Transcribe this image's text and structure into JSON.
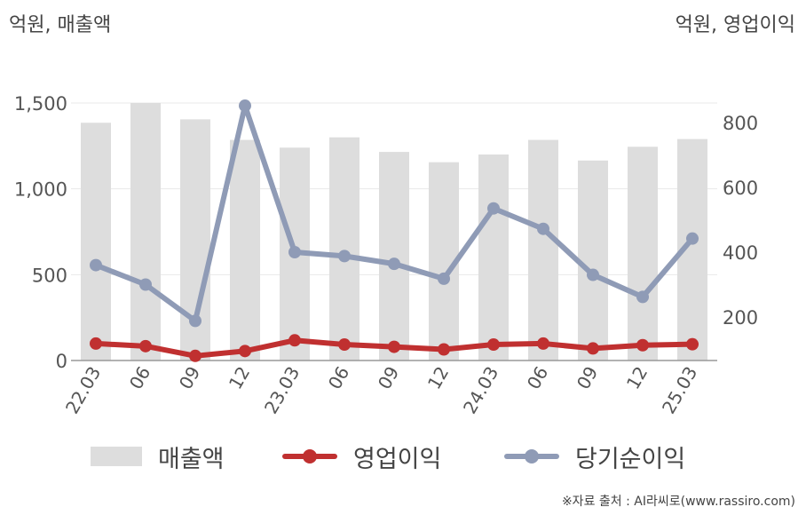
{
  "units": {
    "left": "억원, 매출액",
    "right": "억원, 영업이익"
  },
  "source": "※자료 출처 : AI라씨로(www.rassiro.com)",
  "colors": {
    "bar": "#dddddd",
    "operating": "#c03030",
    "net": "#8f9bb6",
    "grid": "#e8e8e8",
    "axis": "#999999"
  },
  "legend": {
    "sales": "매출액",
    "operating": "영업이익",
    "net": "당기순이익"
  },
  "chart_data": {
    "type": "bar",
    "categories": [
      "22.03",
      "06",
      "09",
      "12",
      "23.03",
      "06",
      "09",
      "12",
      "24.03",
      "06",
      "09",
      "12",
      "25.03"
    ],
    "series": [
      {
        "name": "매출액",
        "type": "bar",
        "axis": "left",
        "values": [
          1385,
          1500,
          1405,
          1285,
          1240,
          1300,
          1215,
          1155,
          1200,
          1285,
          1165,
          1245,
          1290
        ]
      },
      {
        "name": "영업이익",
        "type": "line",
        "axis": "right",
        "values": [
          118,
          110,
          80,
          95,
          128,
          115,
          108,
          100,
          115,
          118,
          103,
          113,
          116
        ]
      },
      {
        "name": "당기순이익",
        "type": "line",
        "axis": "right",
        "values": [
          360,
          300,
          188,
          852,
          400,
          388,
          364,
          318,
          535,
          472,
          330,
          262,
          442
        ]
      }
    ],
    "y_left": {
      "min": 0,
      "max": 1500,
      "ticks": [
        0,
        500,
        1000,
        1500
      ],
      "tick_labels": [
        "0",
        "500",
        "1,000",
        "1,500"
      ]
    },
    "y_right": {
      "ticks": [
        200,
        400,
        600,
        800
      ],
      "tick_labels": [
        "200",
        "400",
        "600",
        "800"
      ]
    },
    "grid": true,
    "legend_position": "bottom"
  }
}
